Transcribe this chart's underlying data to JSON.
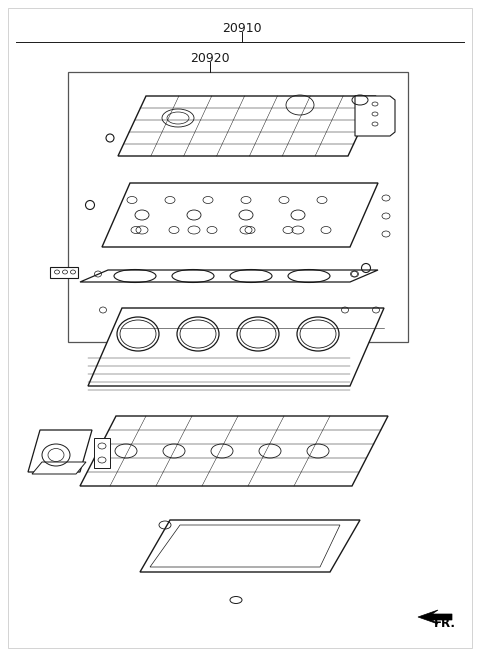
{
  "label_20910": "20910",
  "label_20920": "20920",
  "label_fr": "FR.",
  "bg_color": "#ffffff",
  "line_color": "#1a1a1a",
  "fig_width": 4.8,
  "fig_height": 6.56,
  "dpi": 100,
  "border_color": "#cccccc"
}
